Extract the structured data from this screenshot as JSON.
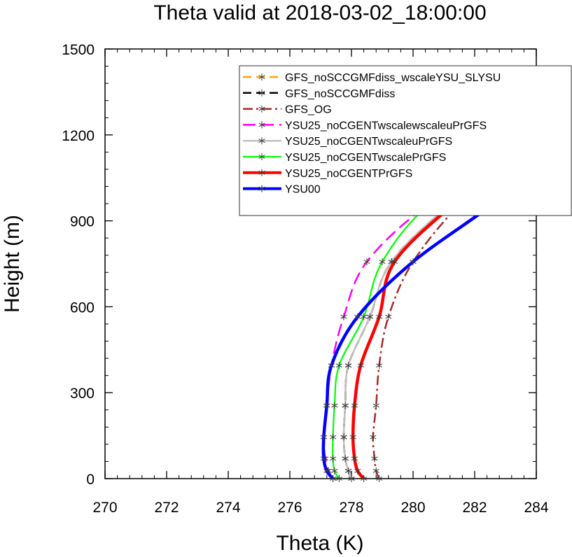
{
  "chart_data": {
    "type": "line",
    "title": "Theta valid at 2018-03-02_18:00:00",
    "xlabel": "Theta (K)",
    "ylabel": "Height (m)",
    "xlim": [
      270,
      284
    ],
    "ylim": [
      0,
      1500
    ],
    "x_ticks": [
      270,
      272,
      274,
      276,
      278,
      280,
      282,
      284
    ],
    "y_ticks": [
      0,
      300,
      600,
      900,
      1200,
      1500
    ],
    "grid": false,
    "legend_position": "top-right",
    "series": [
      {
        "name": "GFS_noSCCGMFdiss_wscaleYSU_SLYSU",
        "color": "#ffa500",
        "dash": "dash",
        "width": 2.5,
        "marker": "asterisk",
        "points": [
          [
            278.0,
            0
          ],
          [
            277.9,
            27
          ],
          [
            277.8,
            70
          ],
          [
            277.75,
            145
          ],
          [
            277.8,
            255
          ],
          [
            277.9,
            395
          ],
          [
            278.6,
            565
          ],
          [
            279.3,
            757
          ],
          [
            281.3,
            967
          ],
          [
            284.0,
            1195
          ]
        ]
      },
      {
        "name": "GFS_noSCCGMFdiss",
        "color": "#000000",
        "dash": "dash",
        "width": 2.5,
        "marker": "asterisk",
        "points": [
          [
            278.0,
            0
          ],
          [
            277.9,
            27
          ],
          [
            277.8,
            70
          ],
          [
            277.75,
            145
          ],
          [
            277.8,
            255
          ],
          [
            277.9,
            395
          ],
          [
            278.6,
            565
          ],
          [
            279.3,
            757
          ],
          [
            281.3,
            967
          ],
          [
            284.0,
            1195
          ]
        ]
      },
      {
        "name": "GFS_OG",
        "color": "#a52a2a",
        "dash": "dashdot",
        "width": 2.5,
        "marker": "asterisk",
        "points": [
          [
            278.9,
            0
          ],
          [
            278.8,
            27
          ],
          [
            278.75,
            70
          ],
          [
            278.7,
            145
          ],
          [
            278.8,
            255
          ],
          [
            278.9,
            395
          ],
          [
            279.2,
            565
          ],
          [
            280.0,
            757
          ],
          [
            281.6,
            967
          ],
          [
            284.0,
            1195
          ]
        ]
      },
      {
        "name": "YSU25_noCGENTwscalewscaleuPrGFS",
        "color": "#ff00ff",
        "dash": "longdash",
        "width": 2.5,
        "marker": "asterisk",
        "points": [
          [
            277.4,
            0
          ],
          [
            277.25,
            27
          ],
          [
            277.15,
            70
          ],
          [
            277.1,
            145
          ],
          [
            277.2,
            255
          ],
          [
            277.35,
            395
          ],
          [
            277.75,
            565
          ],
          [
            278.5,
            757
          ],
          [
            280.6,
            967
          ],
          [
            284.0,
            1205
          ]
        ]
      },
      {
        "name": "YSU25_noCGENTwscaleuPrGFS",
        "color": "#c0c0c0",
        "dash": "solid",
        "width": 2.5,
        "marker": "asterisk",
        "points": [
          [
            278.0,
            0
          ],
          [
            277.9,
            27
          ],
          [
            277.8,
            70
          ],
          [
            277.75,
            145
          ],
          [
            277.8,
            255
          ],
          [
            277.9,
            395
          ],
          [
            278.6,
            565
          ],
          [
            279.3,
            757
          ],
          [
            281.3,
            967
          ],
          [
            284.0,
            1195
          ]
        ]
      },
      {
        "name": "YSU25_noCGENTwscalePrGFS",
        "color": "#00ff00",
        "dash": "solid",
        "width": 2.2,
        "marker": "asterisk",
        "points": [
          [
            277.6,
            0
          ],
          [
            277.45,
            27
          ],
          [
            277.4,
            70
          ],
          [
            277.4,
            145
          ],
          [
            277.45,
            255
          ],
          [
            277.6,
            395
          ],
          [
            278.4,
            565
          ],
          [
            279.0,
            757
          ],
          [
            280.6,
            967
          ],
          [
            284.0,
            1250
          ]
        ]
      },
      {
        "name": "YSU25_noCGENTPrGFS",
        "color": "#ff0000",
        "dash": "solid",
        "width": 4.5,
        "marker": "asterisk",
        "points": [
          [
            278.4,
            0
          ],
          [
            278.2,
            27
          ],
          [
            278.1,
            70
          ],
          [
            278.05,
            145
          ],
          [
            278.1,
            255
          ],
          [
            278.3,
            395
          ],
          [
            278.9,
            565
          ],
          [
            279.4,
            757
          ],
          [
            281.4,
            967
          ],
          [
            284.0,
            1195
          ]
        ]
      },
      {
        "name": "YSU00",
        "color": "#0000ff",
        "dash": "solid",
        "width": 4.5,
        "marker": "asterisk",
        "points": [
          [
            277.4,
            0
          ],
          [
            277.2,
            27
          ],
          [
            277.1,
            70
          ],
          [
            277.1,
            145
          ],
          [
            277.2,
            255
          ],
          [
            277.35,
            395
          ],
          [
            278.2,
            565
          ],
          [
            280.0,
            757
          ],
          [
            282.7,
            967
          ],
          [
            284.0,
            1095
          ]
        ]
      }
    ]
  }
}
